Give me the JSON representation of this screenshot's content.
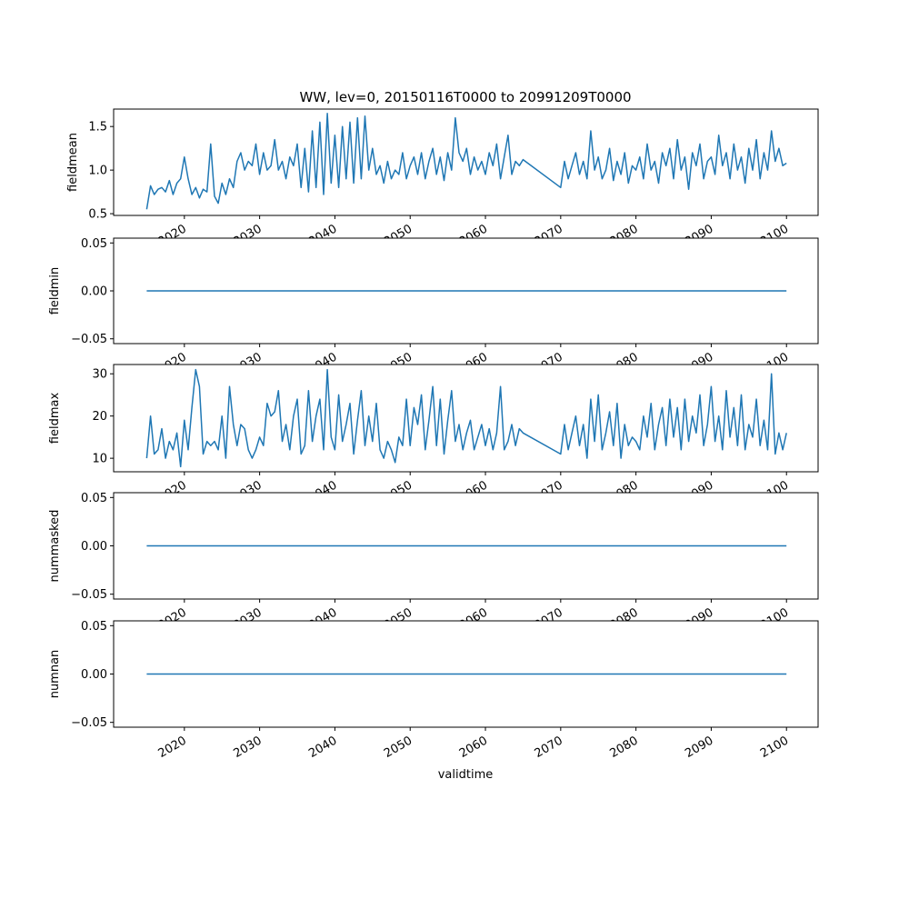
{
  "chart_data": {
    "type": "line",
    "title": "WW, lev=0, 20150116T0000 to 20991209T0000",
    "xlabel": "validtime",
    "xlim": [
      2010.6,
      2104.2
    ],
    "xticks": [
      2020,
      2030,
      2040,
      2050,
      2060,
      2070,
      2080,
      2090,
      2100
    ],
    "xtick_labels": [
      "2020",
      "2030",
      "2040",
      "2050",
      "2060",
      "2070",
      "2080",
      "2090",
      "2100"
    ],
    "line_color": "#1f77b4",
    "grid": false,
    "panels": [
      {
        "ylabel": "fieldmean",
        "ylim": [
          0.48,
          1.7
        ],
        "yticks": [
          0.5,
          1.0,
          1.5
        ],
        "ytick_labels": [
          "0.5",
          "1.0",
          "1.5"
        ],
        "segments": [
          {
            "x_start": 2015,
            "x_step": 0.5,
            "values": [
              0.55,
              0.82,
              0.72,
              0.78,
              0.8,
              0.75,
              0.88,
              0.72,
              0.85,
              0.9,
              1.15,
              0.9,
              0.72,
              0.8,
              0.68,
              0.78,
              0.75,
              1.3,
              0.7,
              0.62,
              0.85,
              0.72,
              0.9,
              0.8,
              1.1,
              1.2,
              1.0,
              1.1,
              1.05,
              1.3,
              0.95,
              1.2,
              1.0,
              1.05,
              1.35,
              1.0,
              1.1,
              0.9,
              1.15,
              1.05,
              1.3,
              0.8,
              1.25,
              0.75,
              1.45,
              0.8,
              1.55,
              0.72,
              1.65,
              0.85,
              1.4,
              0.8,
              1.5,
              0.9,
              1.55,
              0.85,
              1.6,
              0.9,
              1.62,
              1.0,
              1.25,
              0.95,
              1.05,
              0.85,
              1.1,
              0.9,
              1.0,
              0.95,
              1.2,
              0.9,
              1.05,
              1.15,
              0.95,
              1.2,
              0.9,
              1.1,
              1.25,
              0.95,
              1.15,
              0.88,
              1.2,
              1.0,
              1.6,
              1.2,
              1.1,
              1.25,
              0.95,
              1.15,
              1.0,
              1.1,
              0.95,
              1.2,
              1.05,
              1.3,
              0.9,
              1.15,
              1.4,
              0.95,
              1.1,
              1.05,
              1.12
            ]
          },
          {
            "x_start": 2070,
            "x_step": 0.5,
            "values": [
              0.8,
              1.1,
              0.9,
              1.05,
              1.2,
              0.95,
              1.1,
              0.9,
              1.45,
              1.0,
              1.15,
              0.9,
              1.0,
              1.25,
              0.88,
              1.1,
              0.95,
              1.2,
              0.85,
              1.05,
              1.0,
              1.15,
              0.9,
              1.3,
              1.0,
              1.1,
              0.85,
              1.2,
              1.05,
              1.25,
              0.9,
              1.35,
              1.0,
              1.15,
              0.78,
              1.2,
              1.05,
              1.3,
              0.9,
              1.1,
              1.15,
              0.95,
              1.4,
              1.05,
              1.2,
              0.9,
              1.3,
              1.0,
              1.15,
              0.85,
              1.25,
              1.0,
              1.35,
              0.9,
              1.2,
              1.0,
              1.45,
              1.1,
              1.25,
              1.05,
              1.08
            ]
          }
        ]
      },
      {
        "ylabel": "fieldmin",
        "ylim": [
          -0.055,
          0.055
        ],
        "yticks": [
          -0.05,
          0.0,
          0.05
        ],
        "ytick_labels": [
          "−0.05",
          "0.00",
          "0.05"
        ],
        "segments": [
          {
            "x_start": 2015,
            "x_step": 85,
            "values": [
              0,
              0
            ]
          }
        ]
      },
      {
        "ylabel": "fieldmax",
        "ylim": [
          6.8,
          32.2
        ],
        "yticks": [
          10,
          20,
          30
        ],
        "ytick_labels": [
          "10",
          "20",
          "30"
        ],
        "segments": [
          {
            "x_start": 2015,
            "x_step": 0.5,
            "values": [
              10,
              20,
              11,
              12,
              17,
              10,
              14,
              12,
              16,
              8,
              19,
              12,
              22,
              31,
              27,
              11,
              14,
              13,
              14,
              12,
              20,
              10,
              27,
              18,
              13,
              18,
              17,
              12,
              10,
              12,
              15,
              13,
              23,
              20,
              21,
              26,
              14,
              18,
              12,
              20,
              24,
              11,
              13,
              26,
              14,
              20,
              24,
              12,
              31,
              15,
              12,
              25,
              14,
              18,
              23,
              11,
              19,
              26,
              13,
              20,
              14,
              23,
              12,
              10,
              14,
              12,
              9,
              15,
              13,
              24,
              13,
              22,
              18,
              25,
              12,
              19,
              27,
              13,
              24,
              11,
              19,
              26,
              14,
              18,
              12,
              16,
              19,
              12,
              15,
              18,
              13,
              17,
              12,
              16,
              27,
              12,
              14,
              18,
              13,
              17,
              16
            ]
          },
          {
            "x_start": 2070,
            "x_step": 0.5,
            "values": [
              11,
              18,
              12,
              16,
              20,
              13,
              18,
              10,
              24,
              14,
              25,
              12,
              16,
              21,
              13,
              23,
              10,
              18,
              13,
              15,
              14,
              12,
              20,
              15,
              23,
              12,
              18,
              22,
              13,
              24,
              15,
              22,
              12,
              24,
              14,
              20,
              16,
              25,
              13,
              18,
              27,
              14,
              20,
              12,
              26,
              15,
              22,
              13,
              25,
              12,
              18,
              15,
              24,
              13,
              19,
              12,
              30,
              11,
              16,
              12,
              16
            ]
          }
        ]
      },
      {
        "ylabel": "nummasked",
        "ylim": [
          -0.055,
          0.055
        ],
        "yticks": [
          -0.05,
          0.0,
          0.05
        ],
        "ytick_labels": [
          "−0.05",
          "0.00",
          "0.05"
        ],
        "segments": [
          {
            "x_start": 2015,
            "x_step": 85,
            "values": [
              0,
              0
            ]
          }
        ]
      },
      {
        "ylabel": "numnan",
        "ylim": [
          -0.055,
          0.055
        ],
        "yticks": [
          -0.05,
          0.0,
          0.05
        ],
        "ytick_labels": [
          "−0.05",
          "0.00",
          "0.05"
        ],
        "segments": [
          {
            "x_start": 2015,
            "x_step": 85,
            "values": [
              0,
              0
            ]
          }
        ]
      }
    ]
  }
}
